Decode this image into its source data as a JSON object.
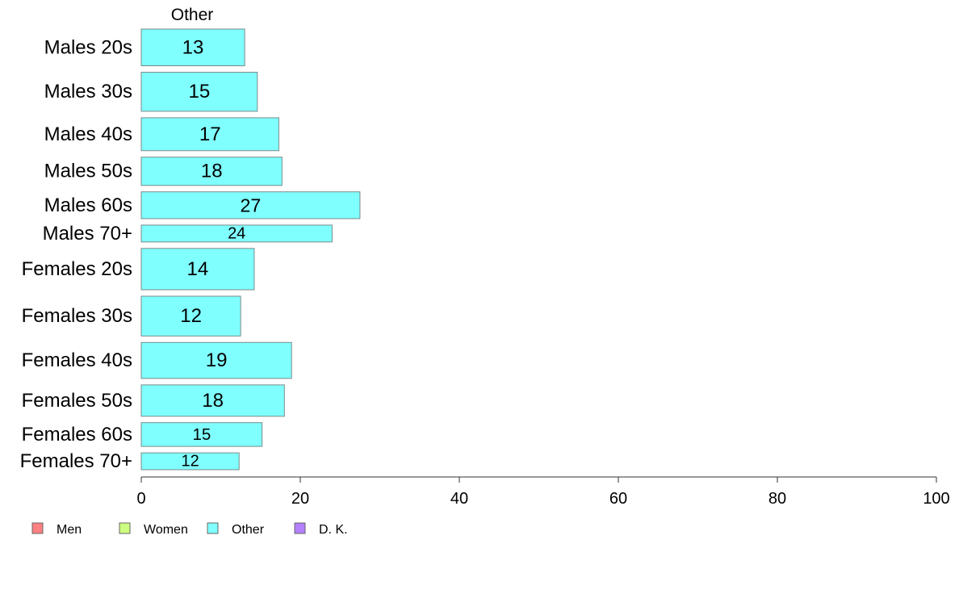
{
  "chart_data": {
    "type": "bar",
    "orientation": "horizontal",
    "panel_title": "Other",
    "categories": [
      "Males 20s",
      "Males 30s",
      "Males 40s",
      "Males 50s",
      "Males 60s",
      "Males 70+",
      "Females 20s",
      "Females 30s",
      "Females 40s",
      "Females 50s",
      "Females 60s",
      "Females 70+"
    ],
    "series": [
      {
        "name": "Other",
        "color": "#80ffff",
        "values": [
          13.0,
          14.6,
          17.3,
          17.7,
          27.5,
          24.0,
          14.2,
          12.5,
          18.9,
          18.0,
          15.2,
          12.3
        ],
        "labels": [
          "13",
          "15",
          "17",
          "18",
          "27",
          "24",
          "14",
          "12",
          "19",
          "18",
          "15",
          "12"
        ]
      }
    ],
    "weights": [
      48,
      51,
      43,
      37,
      35,
      22,
      54,
      52,
      47,
      41,
      31,
      22
    ],
    "xlim": [
      0,
      100
    ],
    "xticks": [
      "0",
      "20",
      "40",
      "60",
      "80",
      "100"
    ],
    "xtick_values": [
      0,
      20,
      40,
      60,
      80,
      100
    ],
    "legend": {
      "position": "bottom-left",
      "items": [
        {
          "label": "Men",
          "color": "#ff8080"
        },
        {
          "label": "Women",
          "color": "#ccff80"
        },
        {
          "label": "Other",
          "color": "#80ffff"
        },
        {
          "label": "D. K.",
          "color": "#b380ff"
        }
      ]
    }
  }
}
